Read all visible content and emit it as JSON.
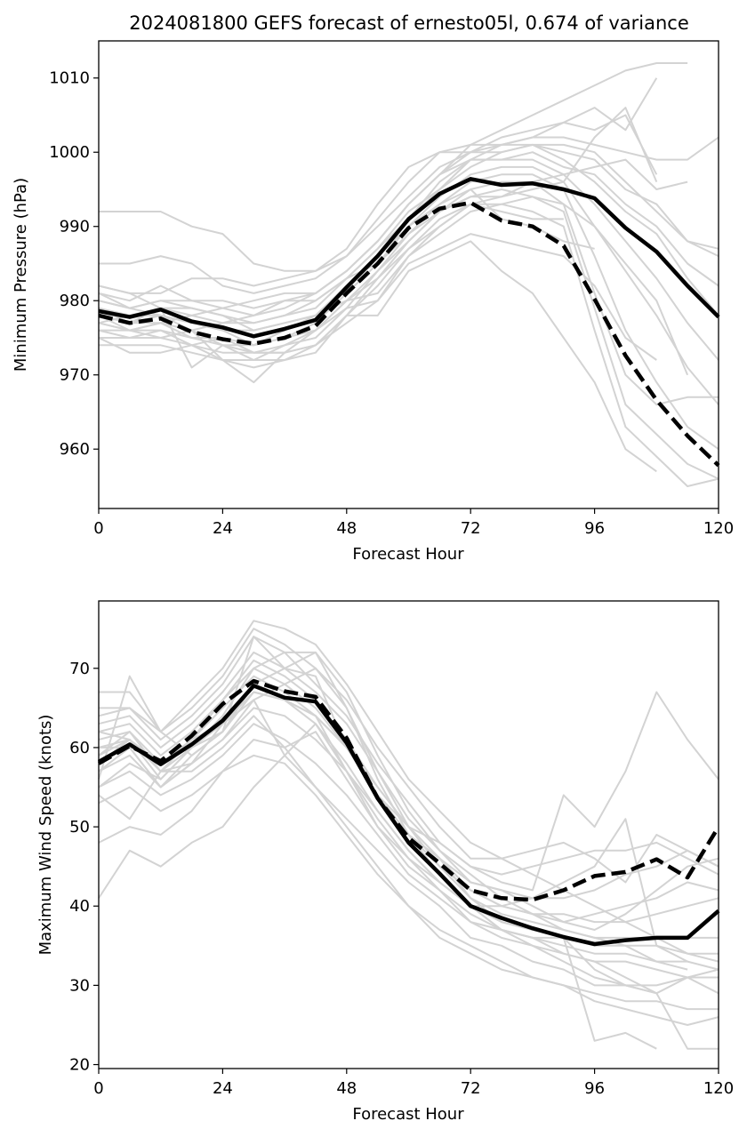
{
  "title": "2024081800 GEFS forecast of ernesto05l, 0.674 of variance",
  "colors": {
    "ensemble": "#d3d3d3",
    "mean": "#000000",
    "axes": "#000000",
    "background": "#ffffff"
  },
  "chart_data": [
    {
      "type": "line",
      "xlabel": "Forecast Hour",
      "ylabel": "Minimum Pressure (hPa)",
      "xlim": [
        0,
        120
      ],
      "ylim": [
        952,
        1015
      ],
      "xticks": [
        "0",
        "24",
        "48",
        "72",
        "96",
        "120"
      ],
      "yticks": [
        "960",
        "970",
        "980",
        "990",
        "1000",
        "1010"
      ],
      "x": [
        0,
        6,
        12,
        18,
        24,
        30,
        36,
        42,
        48,
        54,
        60,
        66,
        72,
        78,
        84,
        90,
        96,
        102,
        108,
        114,
        120
      ],
      "grid": false,
      "series": [
        {
          "style": "solid",
          "values": [
            978.6,
            977.8,
            978.8,
            977.2,
            976.4,
            975.2,
            976.2,
            977.4,
            981.8,
            986.0,
            991.0,
            994.4,
            996.4,
            995.6,
            995.8,
            995.0,
            993.8,
            989.8,
            986.6,
            982.0,
            977.8
          ]
        },
        {
          "style": "dashed",
          "values": [
            978.0,
            977.0,
            977.6,
            975.8,
            974.8,
            974.2,
            975.0,
            976.6,
            981.0,
            985.0,
            989.8,
            992.4,
            993.2,
            990.8,
            990.0,
            987.4,
            980.2,
            972.6,
            966.6,
            961.8,
            957.8
          ]
        }
      ],
      "ensemble": [
        [
          992,
          992,
          992,
          990,
          989,
          985,
          984,
          984,
          987,
          993,
          998,
          1000,
          1001,
          1001,
          1002,
          1002,
          1001,
          1000,
          999,
          999,
          1002
        ],
        [
          985,
          985,
          986,
          985,
          982,
          981,
          982,
          983,
          986,
          991,
          996,
          1000,
          1000,
          1001,
          1001,
          1001,
          1000,
          996,
          992,
          988,
          986
        ],
        [
          982,
          981,
          981,
          983,
          983,
          982,
          983,
          984,
          986,
          990,
          994,
          998,
          1000,
          1000,
          1001,
          1000,
          999,
          995,
          993,
          988,
          987
        ],
        [
          981,
          980,
          982,
          980,
          979,
          978,
          979,
          981,
          984,
          988,
          993,
          997,
          999,
          999,
          1000,
          998,
          997,
          993,
          990,
          985,
          982
        ],
        [
          980,
          979,
          980,
          979,
          978,
          977,
          978,
          979,
          983,
          987,
          992,
          995,
          998,
          1000,
          1001,
          999,
          996,
          992,
          989,
          983,
          978
        ],
        [
          979,
          978,
          978,
          977,
          976,
          976,
          977,
          978,
          982,
          986,
          991,
          996,
          999,
          999,
          999,
          997,
          993,
          988,
          983,
          977,
          972
        ],
        [
          978,
          977,
          978,
          977,
          976,
          974,
          975,
          977,
          981,
          985,
          990,
          994,
          997,
          998,
          998,
          996,
          990,
          984,
          978,
          971,
          966
        ],
        [
          977,
          976,
          977,
          975,
          975,
          974,
          975,
          976,
          980,
          984,
          989,
          993,
          996,
          997,
          997,
          995,
          986,
          976,
          969,
          963,
          960
        ],
        [
          976,
          975,
          976,
          975,
          974,
          973,
          974,
          975,
          979,
          984,
          988,
          992,
          995,
          996,
          996,
          993,
          981,
          970,
          966,
          967,
          967
        ],
        [
          975,
          975,
          975,
          974,
          973,
          973,
          973,
          974,
          978,
          983,
          988,
          992,
          994,
          995,
          994,
          992,
          979,
          966,
          962,
          958,
          956
        ],
        [
          974,
          974,
          974,
          973,
          972,
          972,
          972,
          974,
          978,
          982,
          987,
          991,
          993,
          993,
          992,
          990,
          976,
          963,
          959,
          955,
          956
        ],
        [
          982,
          981,
          979,
          978,
          979,
          980,
          981,
          981,
          984,
          988,
          993,
          997,
          1001,
          1003,
          1005,
          1007,
          1009,
          1011,
          1012,
          1012,
          null
        ],
        [
          980,
          979,
          978,
          976,
          977,
          978,
          980,
          981,
          984,
          988,
          993,
          997,
          1000,
          1002,
          1003,
          1004,
          1006,
          1003,
          1010,
          null,
          null
        ],
        [
          979,
          977,
          977,
          978,
          977,
          977,
          978,
          980,
          983,
          987,
          991,
          995,
          999,
          1001,
          1002,
          1004,
          1003,
          1005,
          997,
          null,
          null
        ],
        [
          978,
          976,
          976,
          974,
          975,
          973,
          973,
          976,
          980,
          983,
          987,
          990,
          993,
          994,
          995,
          996,
          1002,
          1006,
          996,
          null,
          null
        ],
        [
          977,
          978,
          979,
          971,
          974,
          974,
          976,
          978,
          980,
          981,
          986,
          989,
          992,
          993,
          994,
          993,
          990,
          985,
          980,
          970,
          null
        ],
        [
          976,
          976,
          977,
          976,
          974,
          972,
          974,
          976,
          979,
          980,
          985,
          987,
          989,
          988,
          987,
          986,
          982,
          975,
          972,
          null,
          null
        ],
        [
          975,
          973,
          973,
          974,
          972,
          971,
          972,
          973,
          978,
          978,
          984,
          986,
          988,
          984,
          981,
          975,
          969,
          960,
          957,
          null,
          null
        ],
        [
          977,
          976,
          975,
          976,
          972,
          969,
          973,
          974,
          977,
          980,
          986,
          990,
          993,
          992,
          991,
          991,
          null,
          null,
          null,
          null,
          null
        ],
        [
          978,
          977,
          979,
          979,
          978,
          976,
          977,
          978,
          982,
          986,
          990,
          993,
          995,
          991,
          990,
          988,
          987,
          null,
          null,
          null,
          null
        ],
        [
          981,
          979,
          980,
          980,
          980,
          979,
          980,
          980,
          983,
          985,
          989,
          992,
          994,
          994,
          996,
          997,
          998,
          999,
          995,
          996,
          null
        ]
      ]
    },
    {
      "type": "line",
      "xlabel": "Forecast Hour",
      "ylabel": "Maximum Wind Speed (knots)",
      "xlim": [
        0,
        120
      ],
      "ylim": [
        19.5,
        78.5
      ],
      "xticks": [
        "0",
        "24",
        "48",
        "72",
        "96",
        "120"
      ],
      "yticks": [
        "20",
        "30",
        "40",
        "50",
        "60",
        "70"
      ],
      "x": [
        0,
        6,
        12,
        18,
        24,
        30,
        36,
        42,
        48,
        54,
        60,
        66,
        72,
        78,
        84,
        90,
        96,
        102,
        108,
        114,
        120
      ],
      "grid": false,
      "series": [
        {
          "style": "solid",
          "values": [
            58.2,
            60.4,
            57.9,
            60.4,
            63.4,
            67.8,
            66.3,
            65.8,
            60.6,
            53.6,
            48.0,
            44.1,
            40.0,
            38.5,
            37.2,
            36.1,
            35.2,
            35.7,
            36.0,
            36.0,
            39.4
          ]
        },
        {
          "style": "dashed",
          "values": [
            58.0,
            60.2,
            58.3,
            61.5,
            65.5,
            68.4,
            67.1,
            66.4,
            61.2,
            53.6,
            48.6,
            45.4,
            42.0,
            41.0,
            40.8,
            42.0,
            43.8,
            44.3,
            45.9,
            43.6,
            50.0
          ]
        }
      ],
      "ensemble": [
        [
          41,
          47,
          45,
          48,
          50,
          55,
          59,
          55,
          50,
          45,
          40,
          37,
          35,
          33,
          31,
          30,
          28,
          27,
          26,
          25,
          26
        ],
        [
          48,
          50,
          49,
          52,
          57,
          59,
          58,
          54,
          49,
          44,
          40,
          36,
          34,
          32,
          31,
          30,
          29,
          28,
          28,
          27,
          27
        ],
        [
          53,
          55,
          52,
          54,
          57,
          61,
          60,
          55,
          51,
          47,
          43,
          40,
          36,
          35,
          33,
          32,
          30,
          30,
          30,
          31,
          32
        ],
        [
          55,
          57,
          54,
          56,
          59,
          63,
          61,
          58,
          54,
          49,
          44,
          41,
          38,
          36,
          35,
          34,
          33,
          33,
          32,
          31,
          31
        ],
        [
          57,
          59,
          55,
          58,
          61,
          65,
          64,
          61,
          57,
          51,
          46,
          42,
          39,
          37,
          36,
          35,
          34,
          34,
          33,
          33,
          32
        ],
        [
          59,
          61,
          56,
          60,
          63,
          67,
          66,
          63,
          58,
          52,
          47,
          43,
          40,
          38,
          37,
          36,
          35,
          35,
          35,
          34,
          34
        ],
        [
          61,
          62,
          58,
          61,
          65,
          69,
          67,
          64,
          60,
          54,
          49,
          45,
          41,
          39,
          38,
          37,
          36,
          36,
          36,
          36,
          36
        ],
        [
          62,
          63,
          59,
          62,
          66,
          71,
          69,
          66,
          61,
          55,
          50,
          46,
          42,
          40,
          39,
          39,
          38,
          38,
          39,
          40,
          41
        ],
        [
          63,
          64,
          60,
          63,
          67,
          72,
          70,
          67,
          63,
          57,
          51,
          47,
          43,
          42,
          41,
          41,
          42,
          44,
          45,
          47,
          45
        ],
        [
          64,
          65,
          61,
          64,
          68,
          74,
          72,
          68,
          64,
          58,
          53,
          48,
          45,
          44,
          45,
          46,
          47,
          47,
          48,
          46,
          44
        ],
        [
          65,
          65,
          62,
          65,
          69,
          75,
          73,
          70,
          66,
          60,
          55,
          50,
          46,
          46,
          47,
          48,
          46,
          43,
          49,
          47,
          45
        ],
        [
          67,
          67,
          62,
          66,
          70,
          76,
          75,
          73,
          68,
          62,
          56,
          52,
          48,
          46,
          44,
          42,
          40,
          38,
          36,
          34,
          33
        ],
        [
          54,
          51,
          57,
          61,
          66,
          70,
          68,
          65,
          60,
          54,
          49,
          46,
          43,
          42,
          40,
          38,
          37,
          39,
          42,
          45,
          46
        ],
        [
          56,
          69,
          62,
          59,
          62,
          74,
          70,
          69,
          60,
          54,
          50,
          48,
          45,
          43,
          42,
          54,
          50,
          57,
          67,
          61,
          56
        ],
        [
          58,
          61,
          57,
          58,
          61,
          66,
          59,
          63,
          57,
          50,
          46,
          43,
          40,
          40,
          41,
          43,
          45,
          51,
          35,
          33,
          null
        ],
        [
          59,
          62,
          57,
          57,
          60,
          64,
          60,
          62,
          56,
          50,
          45,
          42,
          38,
          37,
          36,
          34,
          33,
          31,
          29,
          22,
          22
        ],
        [
          60,
          60,
          55,
          59,
          62,
          68,
          66,
          64,
          57,
          52,
          47,
          43,
          40,
          37,
          36,
          36,
          23,
          24,
          22,
          null,
          null
        ],
        [
          62,
          61,
          58,
          61,
          63,
          66,
          68,
          70,
          65,
          57,
          50,
          46,
          41,
          38,
          37,
          36,
          32,
          30,
          29,
          null,
          null
        ],
        [
          55,
          58,
          56,
          60,
          64,
          70,
          72,
          72,
          65,
          56,
          49,
          44,
          40,
          37,
          35,
          33,
          31,
          30,
          29,
          31,
          29
        ],
        [
          57,
          60,
          55,
          58,
          63,
          68,
          70,
          72,
          67,
          59,
          52,
          47,
          44,
          41,
          39,
          37,
          36,
          35,
          33,
          32,
          null
        ],
        [
          60,
          61,
          57,
          60,
          62,
          67,
          66,
          64,
          60,
          55,
          50,
          45,
          42,
          40,
          39,
          38,
          39,
          40,
          41,
          43,
          42
        ]
      ]
    }
  ]
}
